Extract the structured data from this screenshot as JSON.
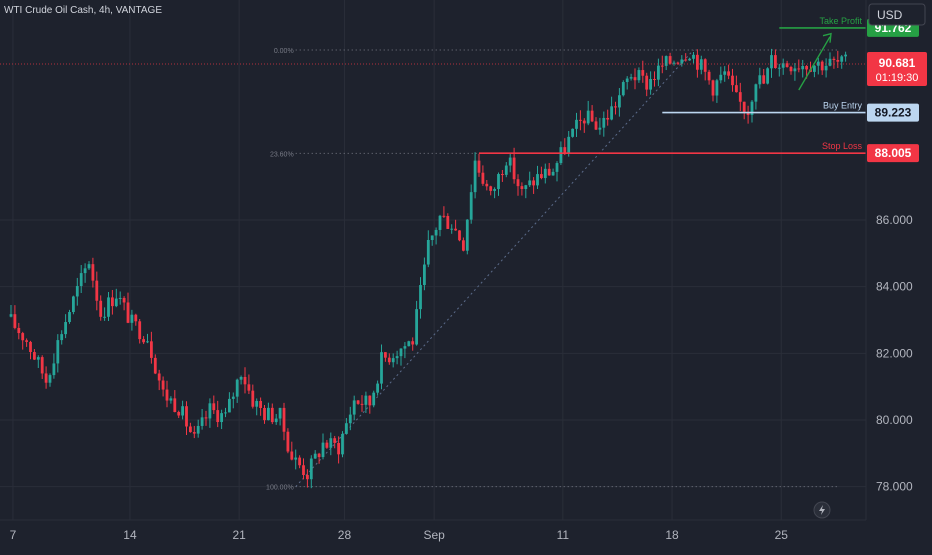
{
  "header": {
    "title": "WTI Crude Oil Cash, 4h, VANTAGE"
  },
  "currency_button": {
    "label": "USD"
  },
  "chart_data": {
    "type": "candlestick",
    "title": "WTI Crude Oil Cash, 4h, VANTAGE",
    "currency": "USD",
    "y_ticks": [
      "78.000",
      "80.000",
      "82.000",
      "84.000",
      "86.000"
    ],
    "x_ticks": [
      {
        "label": "7",
        "bar": 0.5
      },
      {
        "label": "14",
        "bar": 30.5
      },
      {
        "label": "21",
        "bar": 58.5
      },
      {
        "label": "28",
        "bar": 85.5
      },
      {
        "label": "Sep",
        "bar": 108.5
      },
      {
        "label": "11",
        "bar": 141.5
      },
      {
        "label": "18",
        "bar": 169.5
      },
      {
        "label": "25",
        "bar": 197.5
      }
    ],
    "ylim": [
      77.0,
      92.6
    ],
    "bar_count": 215,
    "fibonacci": {
      "anchor_high": 91.1,
      "anchor_low": 78.0,
      "levels": [
        {
          "label": "0.00%",
          "value": 91.1
        },
        {
          "label": "23.60%",
          "value": 88.0
        },
        {
          "label": "100.00%",
          "value": 78.0
        }
      ]
    },
    "levels": [
      {
        "name": "Take Profit",
        "value": 91.762,
        "badge": "91.762",
        "color": "#26a044"
      },
      {
        "name": "Buy Entry",
        "value": 89.223,
        "badge": "89.223",
        "color": "#bcd6f0"
      },
      {
        "name": "Stop Loss",
        "value": 88.005,
        "badge": "88.005",
        "color": "#f23645"
      }
    ],
    "current_price": {
      "value": 90.681,
      "label": "90.681",
      "countdown": "01:19:30",
      "color": "#f23645"
    },
    "colors": {
      "up": "#26a69a",
      "down": "#f23645",
      "background": "#1e222d",
      "grid": "#2a2e39",
      "text": "#b2b5be"
    },
    "price_path": [
      [
        0,
        83.1
      ],
      [
        5,
        82.4
      ],
      [
        10,
        81.2
      ],
      [
        14,
        82.7
      ],
      [
        18,
        83.9
      ],
      [
        21,
        84.8
      ],
      [
        24,
        83.2
      ],
      [
        28,
        83.8
      ],
      [
        32,
        82.9
      ],
      [
        36,
        82.5
      ],
      [
        40,
        80.8
      ],
      [
        44,
        80.4
      ],
      [
        48,
        79.4
      ],
      [
        52,
        80.3
      ],
      [
        56,
        80.1
      ],
      [
        60,
        81.5
      ],
      [
        63,
        80.6
      ],
      [
        66,
        80.2
      ],
      [
        70,
        80.1
      ],
      [
        73,
        78.9
      ],
      [
        77,
        78.4
      ],
      [
        81,
        79.3
      ],
      [
        85,
        79.2
      ],
      [
        89,
        80.6
      ],
      [
        93,
        80.5
      ],
      [
        96,
        81.8
      ],
      [
        100,
        82.1
      ],
      [
        104,
        82.4
      ],
      [
        108,
        85.2
      ],
      [
        111,
        86.1
      ],
      [
        114,
        85.9
      ],
      [
        117,
        85.3
      ],
      [
        120,
        87.8
      ],
      [
        124,
        86.7
      ],
      [
        128,
        87.9
      ],
      [
        132,
        86.8
      ],
      [
        136,
        87.3
      ],
      [
        140,
        87.5
      ],
      [
        144,
        88.4
      ],
      [
        148,
        89.1
      ],
      [
        152,
        88.8
      ],
      [
        156,
        89.5
      ],
      [
        160,
        90.4
      ],
      [
        164,
        90.1
      ],
      [
        168,
        90.6
      ],
      [
        172,
        90.9
      ],
      [
        175,
        91.1
      ],
      [
        178,
        90.6
      ],
      [
        181,
        90.0
      ],
      [
        184,
        90.4
      ],
      [
        187,
        89.6
      ],
      [
        190,
        89.3
      ],
      [
        192,
        90.3
      ],
      [
        194,
        90.1
      ],
      [
        196,
        90.8
      ],
      [
        198,
        90.7
      ]
    ]
  }
}
